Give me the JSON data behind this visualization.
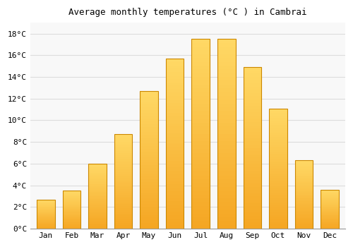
{
  "title": "Average monthly temperatures (°C ) in Cambrai",
  "months": [
    "Jan",
    "Feb",
    "Mar",
    "Apr",
    "May",
    "Jun",
    "Jul",
    "Aug",
    "Sep",
    "Oct",
    "Nov",
    "Dec"
  ],
  "temperatures": [
    2.7,
    3.5,
    6.0,
    8.7,
    12.7,
    15.7,
    17.5,
    17.5,
    14.9,
    11.1,
    6.3,
    3.6
  ],
  "bar_color_bottom": "#F5A623",
  "bar_color_top": "#FFD966",
  "bar_edge_color": "#CC8800",
  "background_color": "#FFFFFF",
  "plot_bg_color": "#F8F8F8",
  "grid_color": "#DDDDDD",
  "ylim": [
    0,
    19
  ],
  "yticks": [
    0,
    2,
    4,
    6,
    8,
    10,
    12,
    14,
    16,
    18
  ],
  "ytick_labels": [
    "0°C",
    "2°C",
    "4°C",
    "6°C",
    "8°C",
    "10°C",
    "12°C",
    "14°C",
    "16°C",
    "18°C"
  ],
  "title_fontsize": 9,
  "tick_fontsize": 8,
  "font_family": "monospace"
}
